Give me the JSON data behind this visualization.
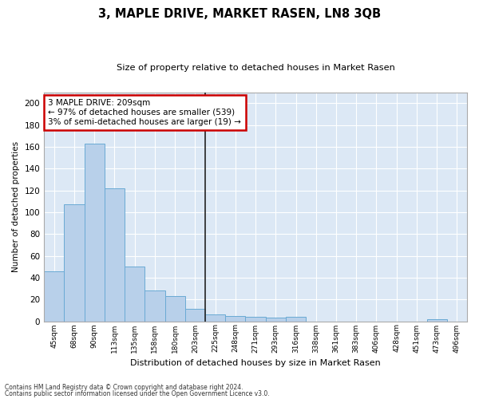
{
  "title": "3, MAPLE DRIVE, MARKET RASEN, LN8 3QB",
  "subtitle": "Size of property relative to detached houses in Market Rasen",
  "xlabel": "Distribution of detached houses by size in Market Rasen",
  "ylabel": "Number of detached properties",
  "bar_labels": [
    "45sqm",
    "68sqm",
    "90sqm",
    "113sqm",
    "135sqm",
    "158sqm",
    "180sqm",
    "203sqm",
    "225sqm",
    "248sqm",
    "271sqm",
    "293sqm",
    "316sqm",
    "338sqm",
    "361sqm",
    "383sqm",
    "406sqm",
    "428sqm",
    "451sqm",
    "473sqm",
    "496sqm"
  ],
  "bar_values": [
    46,
    107,
    163,
    122,
    50,
    28,
    23,
    11,
    6,
    5,
    4,
    3,
    4,
    0,
    0,
    0,
    0,
    0,
    0,
    2,
    0
  ],
  "highlight_index": 7,
  "bar_color": "#b8d0ea",
  "bar_edge_color": "#6aaad4",
  "ylim": [
    0,
    210
  ],
  "yticks": [
    0,
    20,
    40,
    60,
    80,
    100,
    120,
    140,
    160,
    180,
    200
  ],
  "bg_color": "#dce8f5",
  "grid_color": "#ffffff",
  "annotation_text": "3 MAPLE DRIVE: 209sqm\n← 97% of detached houses are smaller (539)\n3% of semi-detached houses are larger (19) →",
  "annotation_box_color": "#ffffff",
  "annotation_box_edge": "#cc0000",
  "vline_x_index": 7.5,
  "footer1": "Contains HM Land Registry data © Crown copyright and database right 2024.",
  "footer2": "Contains public sector information licensed under the Open Government Licence v3.0."
}
